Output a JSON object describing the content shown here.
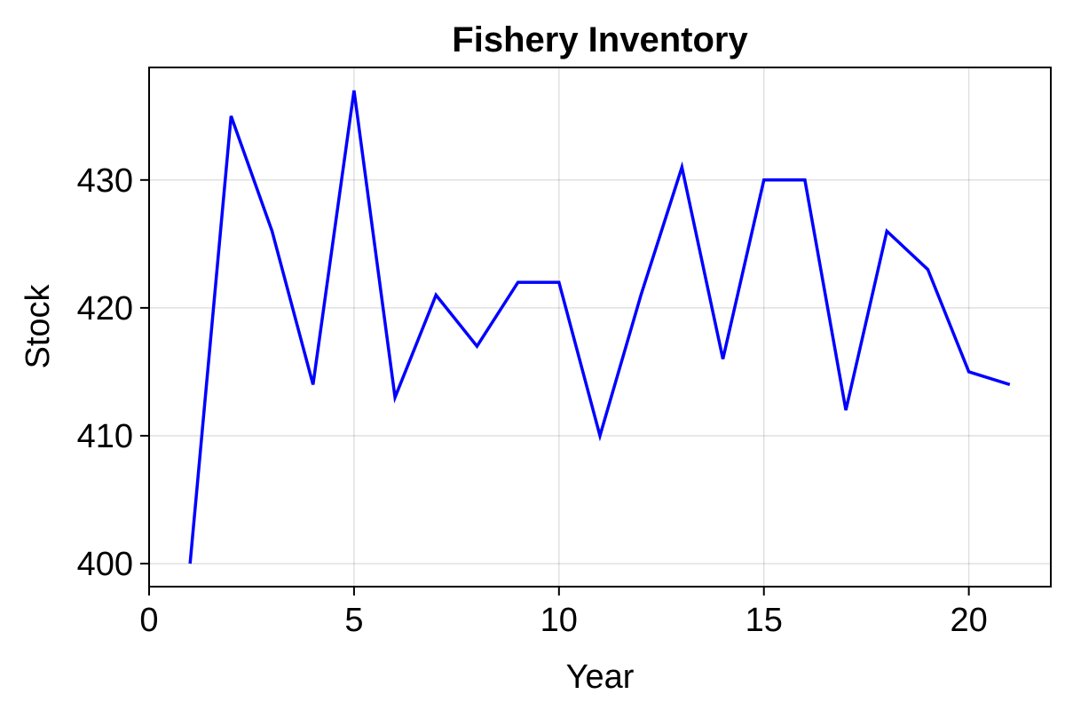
{
  "chart_data": {
    "type": "line",
    "title": "Fishery Inventory",
    "xlabel": "Year",
    "ylabel": "Stock",
    "xlim": [
      0,
      22
    ],
    "ylim": [
      398.2,
      438.8
    ],
    "xticks": [
      0,
      5,
      10,
      15,
      20
    ],
    "yticks": [
      400,
      410,
      420,
      430
    ],
    "grid": true,
    "legend": "none",
    "series": [
      {
        "color": "#0000ff",
        "x": [
          1,
          2,
          3,
          4,
          5,
          6,
          7,
          8,
          9,
          10,
          11,
          12,
          13,
          14,
          15,
          16,
          17,
          18,
          19,
          20,
          21
        ],
        "values": [
          400,
          435,
          426,
          414,
          437,
          413,
          421,
          417,
          422,
          422,
          410,
          421,
          431,
          416,
          430,
          430,
          412,
          426,
          423,
          415,
          414
        ]
      }
    ]
  }
}
